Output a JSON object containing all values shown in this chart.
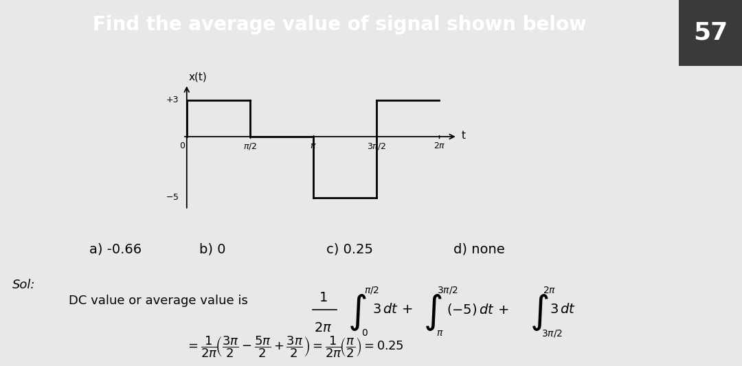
{
  "title": "Find the average value of signal shown below",
  "title_bg": "#F5A623",
  "title_text_color": "#FFFFFF",
  "slide_number": "57",
  "slide_num_bg": "#3A3A3A",
  "bg_color": "#E8E8E8",
  "content_bg": "#F0F0F0",
  "options": [
    "a) -0.66",
    "b) 0",
    "c) 0.25",
    "d) none"
  ],
  "sol_label": "Sol:",
  "dc_label": "DC value or average value is"
}
